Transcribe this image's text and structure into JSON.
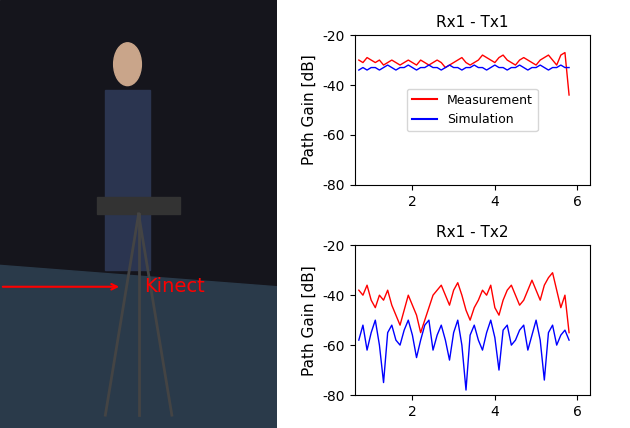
{
  "image_panel": {
    "annotation": "Kinect"
  },
  "chart_data": [
    {
      "type": "line",
      "title": "Rx1 - Tx1",
      "y_label": "Path Gain [dB]",
      "x": [
        0.7,
        0.8,
        0.9,
        1.0,
        1.1,
        1.2,
        1.3,
        1.4,
        1.5,
        1.6,
        1.7,
        1.8,
        1.9,
        2.0,
        2.1,
        2.2,
        2.3,
        2.4,
        2.5,
        2.6,
        2.7,
        2.8,
        2.9,
        3.0,
        3.1,
        3.2,
        3.3,
        3.4,
        3.5,
        3.6,
        3.7,
        3.8,
        3.9,
        4.0,
        4.1,
        4.2,
        4.3,
        4.4,
        4.5,
        4.6,
        4.7,
        4.8,
        4.9,
        5.0,
        5.1,
        5.2,
        5.3,
        5.4,
        5.5,
        5.6,
        5.7,
        5.8
      ],
      "series": [
        {
          "name": "Measurement",
          "color": "#ff0000",
          "values": [
            -30,
            -31,
            -29,
            -30,
            -31,
            -30,
            -32,
            -31,
            -30,
            -31,
            -32,
            -31,
            -30,
            -31,
            -32,
            -30,
            -31,
            -32,
            -31,
            -30,
            -31,
            -33,
            -32,
            -31,
            -30,
            -29,
            -31,
            -32,
            -31,
            -30,
            -28,
            -29,
            -30,
            -31,
            -29,
            -28,
            -30,
            -31,
            -32,
            -30,
            -29,
            -30,
            -31,
            -32,
            -30,
            -29,
            -28,
            -30,
            -32,
            -28,
            -27,
            -44
          ]
        },
        {
          "name": "Simulation",
          "color": "#0000ff",
          "values": [
            -34,
            -33,
            -34,
            -33,
            -33,
            -34,
            -33,
            -32,
            -33,
            -34,
            -33,
            -33,
            -32,
            -33,
            -34,
            -33,
            -33,
            -32,
            -33,
            -33,
            -34,
            -33,
            -32,
            -33,
            -33,
            -34,
            -33,
            -33,
            -32,
            -33,
            -33,
            -34,
            -33,
            -32,
            -33,
            -33,
            -34,
            -33,
            -33,
            -32,
            -33,
            -34,
            -33,
            -33,
            -32,
            -33,
            -34,
            -33,
            -33,
            -32,
            -33,
            -33
          ]
        }
      ],
      "xlim": [
        0.6,
        6.3
      ],
      "xticks": [
        2,
        4,
        6
      ],
      "ylim": [
        -80,
        -20
      ],
      "yticks": [
        -80,
        -60,
        -40,
        -20
      ],
      "legend": "center"
    },
    {
      "type": "line",
      "title": "Rx1 - Tx2",
      "y_label": "Path Gain [dB]",
      "x": [
        0.7,
        0.8,
        0.9,
        1.0,
        1.1,
        1.2,
        1.3,
        1.4,
        1.5,
        1.6,
        1.7,
        1.8,
        1.9,
        2.0,
        2.1,
        2.2,
        2.3,
        2.4,
        2.5,
        2.6,
        2.7,
        2.8,
        2.9,
        3.0,
        3.1,
        3.2,
        3.3,
        3.4,
        3.5,
        3.6,
        3.7,
        3.8,
        3.9,
        4.0,
        4.1,
        4.2,
        4.3,
        4.4,
        4.5,
        4.6,
        4.7,
        4.8,
        4.9,
        5.0,
        5.1,
        5.2,
        5.3,
        5.4,
        5.5,
        5.6,
        5.7,
        5.8
      ],
      "series": [
        {
          "name": "Measurement",
          "color": "#ff0000",
          "values": [
            -38,
            -40,
            -36,
            -42,
            -45,
            -40,
            -42,
            -38,
            -44,
            -48,
            -52,
            -46,
            -40,
            -44,
            -48,
            -55,
            -50,
            -45,
            -40,
            -38,
            -36,
            -40,
            -44,
            -38,
            -35,
            -40,
            -46,
            -50,
            -45,
            -42,
            -38,
            -40,
            -36,
            -45,
            -48,
            -42,
            -38,
            -36,
            -40,
            -44,
            -42,
            -38,
            -34,
            -38,
            -42,
            -36,
            -33,
            -31,
            -38,
            -45,
            -40,
            -55
          ]
        },
        {
          "name": "Simulation",
          "color": "#0000ff",
          "values": [
            -58,
            -52,
            -62,
            -55,
            -50,
            -60,
            -75,
            -55,
            -52,
            -58,
            -60,
            -54,
            -50,
            -56,
            -65,
            -58,
            -52,
            -50,
            -62,
            -56,
            -52,
            -58,
            -66,
            -55,
            -50,
            -60,
            -78,
            -56,
            -52,
            -58,
            -62,
            -55,
            -50,
            -57,
            -70,
            -54,
            -52,
            -60,
            -58,
            -54,
            -52,
            -62,
            -56,
            -50,
            -58,
            -74,
            -55,
            -52,
            -60,
            -56,
            -54,
            -58
          ]
        }
      ],
      "xlim": [
        0.6,
        6.3
      ],
      "xticks": [
        2,
        4,
        6
      ],
      "ylim": [
        -80,
        -20
      ],
      "yticks": [
        -80,
        -60,
        -40,
        -20
      ]
    }
  ]
}
